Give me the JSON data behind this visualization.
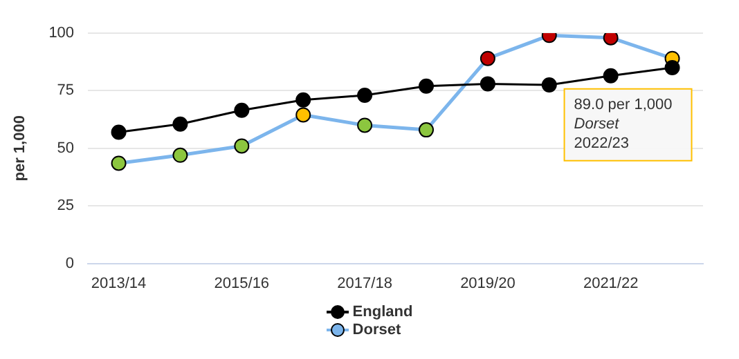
{
  "chart_data": {
    "type": "line",
    "ylabel": "per 1,000",
    "categories": [
      "2013/14",
      null,
      "2015/16",
      null,
      "2017/18",
      null,
      "2019/20",
      null,
      "2021/22",
      null
    ],
    "series": [
      {
        "name": "England",
        "color": "#000000",
        "colors": [
          "#000000",
          "#000000",
          "#000000",
          "#000000",
          "#000000",
          "#000000",
          "#000000",
          "#000000",
          "#000000",
          "#000000"
        ],
        "values": [
          57,
          60.5,
          66.5,
          71,
          73,
          77,
          78,
          77.5,
          81.5,
          85
        ]
      },
      {
        "name": "Dorset",
        "color": "#7cb5ec",
        "colors": [
          "#8cc63f",
          "#8cc63f",
          "#8cc63f",
          "#ffc000",
          "#8cc63f",
          "#8cc63f",
          "#c00000",
          "#c00000",
          "#c00000",
          "#ffc000"
        ],
        "values": [
          43.5,
          47,
          51,
          64.5,
          60,
          58,
          89,
          99,
          98,
          89
        ]
      }
    ],
    "ylim": [
      0,
      100
    ],
    "yticks": [
      0,
      25,
      50,
      75,
      100
    ],
    "grid": "y",
    "legend": "bottom",
    "marker": "circle",
    "line_style": "solid",
    "annotations": [
      "89.0 per 1,000\nDorset\n2022/23"
    ]
  }
}
